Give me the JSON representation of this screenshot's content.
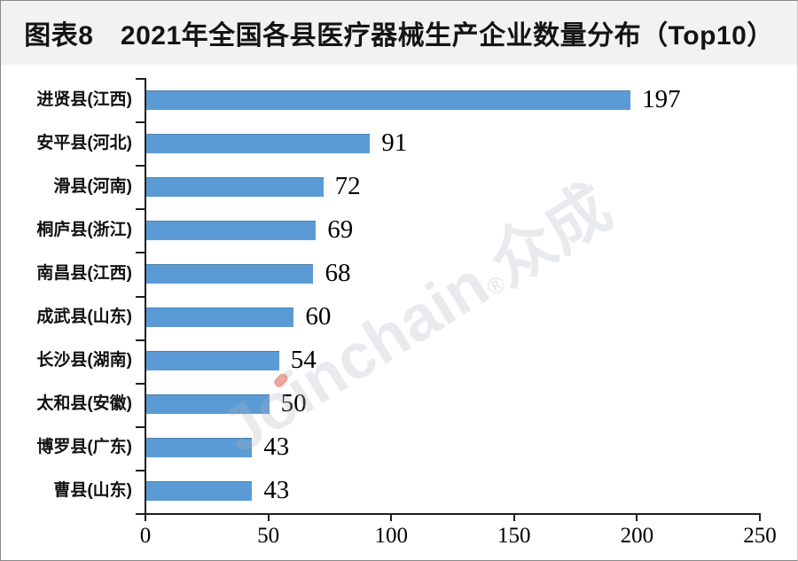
{
  "header": {
    "title": "图表8　2021年全国各县医疗器械生产企业数量分布（Top10）"
  },
  "watermark": {
    "brand": "Joinchain",
    "reg": "®",
    "cjk": "众成",
    "dot_color": "#dd5a4e"
  },
  "chart_data": {
    "type": "bar",
    "orientation": "horizontal",
    "title": "图表8　2021年全国各县医疗器械生产企业数量分布（Top10）",
    "categories": [
      "进贤县(江西)",
      "安平县(河北)",
      "滑县(河南)",
      "桐庐县(浙江)",
      "南昌县(江西)",
      "成武县(山东)",
      "长沙县(湖南)",
      "太和县(安徽)",
      "博罗县(广东)",
      "曹县(山东)"
    ],
    "values": [
      197,
      91,
      72,
      69,
      68,
      60,
      54,
      50,
      43,
      43
    ],
    "x_ticks": [
      0,
      50,
      100,
      150,
      200,
      250
    ],
    "xlim": [
      0,
      250
    ],
    "xlabel": "",
    "ylabel": "",
    "bar_color": "#5B9BD5",
    "axis_color": "#1f1f1f",
    "grid": false,
    "legend": false,
    "value_labels": "outside-end"
  }
}
